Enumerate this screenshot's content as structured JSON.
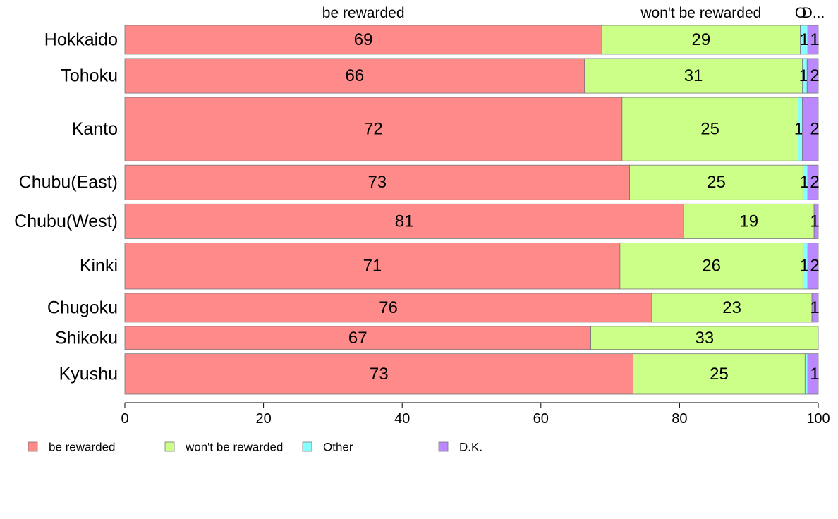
{
  "chart_data": {
    "type": "bar",
    "orientation": "horizontal",
    "stacked": true,
    "categories": [
      "Hokkaido",
      "Tohoku",
      "Kanto",
      "Chubu(East)",
      "Chubu(West)",
      "Kinki",
      "Chugoku",
      "Shikoku",
      "Kyushu"
    ],
    "series": [
      {
        "name": "be rewarded",
        "color": "#ff8a8a",
        "values": [
          68.8,
          66.3,
          71.7,
          72.8,
          80.6,
          71.4,
          76.0,
          67.2,
          73.3
        ],
        "labels": [
          "69",
          "66",
          "72",
          "73",
          "81",
          "71",
          "76",
          "67",
          "73"
        ]
      },
      {
        "name": "won't be rewarded",
        "color": "#ccff88",
        "values": [
          28.6,
          31.4,
          25.4,
          25.0,
          18.8,
          26.4,
          23.1,
          32.8,
          24.8
        ],
        "labels": [
          "29",
          "31",
          "25",
          "25",
          "19",
          "26",
          "23",
          "33",
          "25"
        ]
      },
      {
        "name": "Other",
        "color": "#88ffff",
        "values": [
          1.1,
          0.7,
          0.6,
          0.7,
          0.0,
          0.7,
          0.0,
          0.0,
          0.4
        ],
        "labels": [
          "1",
          "1",
          "1",
          "1",
          "",
          "1",
          "",
          "",
          ""
        ]
      },
      {
        "name": "D.K.",
        "color": "#bb88ff",
        "values": [
          1.5,
          1.6,
          2.3,
          1.5,
          0.6,
          1.5,
          0.9,
          0.0,
          1.5
        ],
        "labels": [
          "1",
          "2",
          "2",
          "2",
          "1",
          "2",
          "1",
          "",
          "1"
        ]
      }
    ],
    "bar_weights": [
      5,
      6,
      11,
      6,
      6,
      8,
      5,
      4,
      7
    ],
    "column_headers": [
      "be rewarded",
      "won't be rewarded",
      "O",
      "D..."
    ],
    "xlim": [
      0,
      100
    ],
    "xticks": [
      "0",
      "20",
      "40",
      "60",
      "80",
      "100"
    ],
    "legend_position": "bottom-left"
  }
}
